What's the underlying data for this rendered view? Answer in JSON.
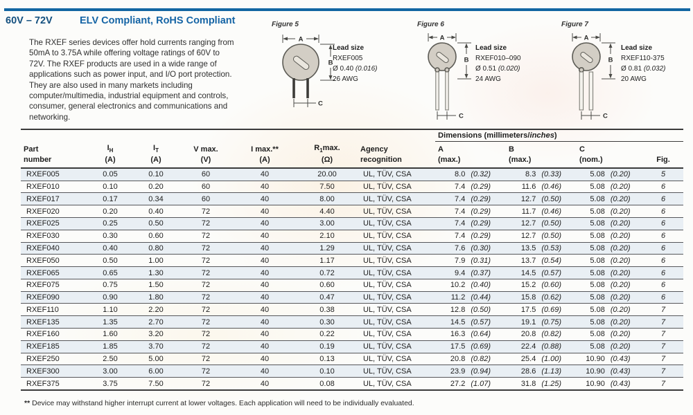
{
  "page": {
    "voltage_range": "60V – 72V",
    "title": "ELV Compliant, RoHS Compliant",
    "description": "The RXEF series devices offer hold currents ranging from 50mA to 3.75A while offering voltage ratings of 60V to 72V. The RXEF products are used in a wide range of applications such as power input, and I/O port protection. They are also used in many markets including computer/multimedia, industrial equipment and controls, consumer, general electronics and communications and networking."
  },
  "figures": [
    {
      "label": "Figure 5",
      "lead_size_heading": "Lead size",
      "part_range": "RXEF005",
      "diameter_mm": "Ø 0.40",
      "diameter_in": "(0.016)",
      "awg": "26 AWG",
      "dim_a": "A",
      "dim_b": "B",
      "dim_c": "C"
    },
    {
      "label": "Figure 6",
      "lead_size_heading": "Lead size",
      "part_range": "RXEF010–090",
      "diameter_mm": "Ø 0.51",
      "diameter_in": "(0.020)",
      "awg": "24 AWG",
      "dim_a": "A",
      "dim_b": "B",
      "dim_c": "C"
    },
    {
      "label": "Figure 7",
      "lead_size_heading": "Lead size",
      "part_range": "RXEF110-375",
      "diameter_mm": "Ø 0.81",
      "diameter_in": "(0.032)",
      "awg": "20 AWG",
      "dim_a": "A",
      "dim_b": "B",
      "dim_c": "C"
    }
  ],
  "table": {
    "dims": {
      "prefix": "Dimensions (millimeters/",
      "italic": "inches",
      "suffix": ")"
    },
    "col_part": {
      "line1": "Part",
      "line2": "number"
    },
    "col_ih": {
      "sym": "I",
      "sub": "H",
      "unit": "(A)"
    },
    "col_it": {
      "sym": "I",
      "sub": "T",
      "unit": "(A)"
    },
    "col_vmax": {
      "line1": "V max.",
      "line2": "(V)"
    },
    "col_imax": {
      "line1": "I max.**",
      "line2": "(A)"
    },
    "col_rmax": {
      "sym": "R",
      "sub": "1",
      "rest": "max.",
      "unit": "(Ω)"
    },
    "col_agency": {
      "line1": "Agency",
      "line2": "recognition"
    },
    "col_a": {
      "line1": "A",
      "line2": "(max.)"
    },
    "col_b": {
      "line1": "B",
      "line2": "(max.)"
    },
    "col_c": {
      "line1": "C",
      "line2": "(nom.)"
    },
    "col_fig": {
      "line1": "Fig."
    },
    "rows": [
      {
        "part": "RXEF005",
        "ih": "0.05",
        "it": "0.10",
        "v": "60",
        "imax": "40",
        "r": "20.00",
        "agency": "UL, TÜV, CSA",
        "a_mm": "8.0",
        "a_in": "(0.32)",
        "b_mm": "8.3",
        "b_in": "(0.33)",
        "c_mm": "5.08",
        "c_in": "(0.20)",
        "fig": "5"
      },
      {
        "part": "RXEF010",
        "ih": "0.10",
        "it": "0.20",
        "v": "60",
        "imax": "40",
        "r": "7.50",
        "agency": "UL, TÜV, CSA",
        "a_mm": "7.4",
        "a_in": "(0.29)",
        "b_mm": "11.6",
        "b_in": "(0.46)",
        "c_mm": "5.08",
        "c_in": "(0.20)",
        "fig": "6"
      },
      {
        "part": "RXEF017",
        "ih": "0.17",
        "it": "0.34",
        "v": "60",
        "imax": "40",
        "r": "8.00",
        "agency": "UL, TÜV, CSA",
        "a_mm": "7.4",
        "a_in": "(0.29)",
        "b_mm": "12.7",
        "b_in": "(0.50)",
        "c_mm": "5.08",
        "c_in": "(0.20)",
        "fig": "6"
      },
      {
        "part": "RXEF020",
        "ih": "0.20",
        "it": "0.40",
        "v": "72",
        "imax": "40",
        "r": "4.40",
        "agency": "UL, TÜV, CSA",
        "a_mm": "7.4",
        "a_in": "(0.29)",
        "b_mm": "11.7",
        "b_in": "(0.46)",
        "c_mm": "5.08",
        "c_in": "(0.20)",
        "fig": "6"
      },
      {
        "part": "RXEF025",
        "ih": "0.25",
        "it": "0.50",
        "v": "72",
        "imax": "40",
        "r": "3.00",
        "agency": "UL, TÜV, CSA",
        "a_mm": "7.4",
        "a_in": "(0.29)",
        "b_mm": "12.7",
        "b_in": "(0.50)",
        "c_mm": "5.08",
        "c_in": "(0.20)",
        "fig": "6"
      },
      {
        "part": "RXEF030",
        "ih": "0.30",
        "it": "0.60",
        "v": "72",
        "imax": "40",
        "r": "2.10",
        "agency": "UL, TÜV, CSA",
        "a_mm": "7.4",
        "a_in": "(0.29)",
        "b_mm": "12.7",
        "b_in": "(0.50)",
        "c_mm": "5.08",
        "c_in": "(0.20)",
        "fig": "6"
      },
      {
        "part": "RXEF040",
        "ih": "0.40",
        "it": "0.80",
        "v": "72",
        "imax": "40",
        "r": "1.29",
        "agency": "UL, TÜV, CSA",
        "a_mm": "7.6",
        "a_in": "(0.30)",
        "b_mm": "13.5",
        "b_in": "(0.53)",
        "c_mm": "5.08",
        "c_in": "(0.20)",
        "fig": "6"
      },
      {
        "part": "RXEF050",
        "ih": "0.50",
        "it": "1.00",
        "v": "72",
        "imax": "40",
        "r": "1.17",
        "agency": "UL, TÜV, CSA",
        "a_mm": "7.9",
        "a_in": "(0.31)",
        "b_mm": "13.7",
        "b_in": "(0.54)",
        "c_mm": "5.08",
        "c_in": "(0.20)",
        "fig": "6"
      },
      {
        "part": "RXEF065",
        "ih": "0.65",
        "it": "1.30",
        "v": "72",
        "imax": "40",
        "r": "0.72",
        "agency": "UL, TÜV, CSA",
        "a_mm": "9.4",
        "a_in": "(0.37)",
        "b_mm": "14.5",
        "b_in": "(0.57)",
        "c_mm": "5.08",
        "c_in": "(0.20)",
        "fig": "6"
      },
      {
        "part": "RXEF075",
        "ih": "0.75",
        "it": "1.50",
        "v": "72",
        "imax": "40",
        "r": "0.60",
        "agency": "UL, TÜV, CSA",
        "a_mm": "10.2",
        "a_in": "(0.40)",
        "b_mm": "15.2",
        "b_in": "(0.60)",
        "c_mm": "5.08",
        "c_in": "(0.20)",
        "fig": "6"
      },
      {
        "part": "RXEF090",
        "ih": "0.90",
        "it": "1.80",
        "v": "72",
        "imax": "40",
        "r": "0.47",
        "agency": "UL, TÜV, CSA",
        "a_mm": "11.2",
        "a_in": "(0.44)",
        "b_mm": "15.8",
        "b_in": "(0.62)",
        "c_mm": "5.08",
        "c_in": "(0.20)",
        "fig": "6"
      },
      {
        "part": "RXEF110",
        "ih": "1.10",
        "it": "2.20",
        "v": "72",
        "imax": "40",
        "r": "0.38",
        "agency": "UL, TÜV, CSA",
        "a_mm": "12.8",
        "a_in": "(0.50)",
        "b_mm": "17.5",
        "b_in": "(0.69)",
        "c_mm": "5.08",
        "c_in": "(0.20)",
        "fig": "7"
      },
      {
        "part": "RXEF135",
        "ih": "1.35",
        "it": "2.70",
        "v": "72",
        "imax": "40",
        "r": "0.30",
        "agency": "UL, TÜV, CSA",
        "a_mm": "14.5",
        "a_in": "(0.57)",
        "b_mm": "19.1",
        "b_in": "(0.75)",
        "c_mm": "5.08",
        "c_in": "(0.20)",
        "fig": "7"
      },
      {
        "part": "RXEF160",
        "ih": "1.60",
        "it": "3.20",
        "v": "72",
        "imax": "40",
        "r": "0.22",
        "agency": "UL, TÜV, CSA",
        "a_mm": "16.3",
        "a_in": "(0.64)",
        "b_mm": "20.8",
        "b_in": "(0.82)",
        "c_mm": "5.08",
        "c_in": "(0.20)",
        "fig": "7"
      },
      {
        "part": "RXEF185",
        "ih": "1.85",
        "it": "3.70",
        "v": "72",
        "imax": "40",
        "r": "0.19",
        "agency": "UL, TÜV, CSA",
        "a_mm": "17.5",
        "a_in": "(0.69)",
        "b_mm": "22.4",
        "b_in": "(0.88)",
        "c_mm": "5.08",
        "c_in": "(0.20)",
        "fig": "7"
      },
      {
        "part": "RXEF250",
        "ih": "2.50",
        "it": "5.00",
        "v": "72",
        "imax": "40",
        "r": "0.13",
        "agency": "UL, TÜV, CSA",
        "a_mm": "20.8",
        "a_in": "(0.82)",
        "b_mm": "25.4",
        "b_in": "(1.00)",
        "c_mm": "10.90",
        "c_in": "(0.43)",
        "fig": "7"
      },
      {
        "part": "RXEF300",
        "ih": "3.00",
        "it": "6.00",
        "v": "72",
        "imax": "40",
        "r": "0.10",
        "agency": "UL, TÜV, CSA",
        "a_mm": "23.9",
        "a_in": "(0.94)",
        "b_mm": "28.6",
        "b_in": "(1.13)",
        "c_mm": "10.90",
        "c_in": "(0.43)",
        "fig": "7"
      },
      {
        "part": "RXEF375",
        "ih": "3.75",
        "it": "7.50",
        "v": "72",
        "imax": "40",
        "r": "0.08",
        "agency": "UL, TÜV, CSA",
        "a_mm": "27.2",
        "a_in": "(1.07)",
        "b_mm": "31.8",
        "b_in": "(1.25)",
        "c_mm": "10.90",
        "c_in": "(0.43)",
        "fig": "7"
      }
    ]
  },
  "footnote": {
    "marker": "**",
    "text": "Device may withstand higher interrupt current at lower voltages. Each application will need to be individually evaluated."
  },
  "colors": {
    "accent_blue": "#1464a5",
    "rule_blue": "#1266a2",
    "row_stripe": "#e9eff4"
  }
}
